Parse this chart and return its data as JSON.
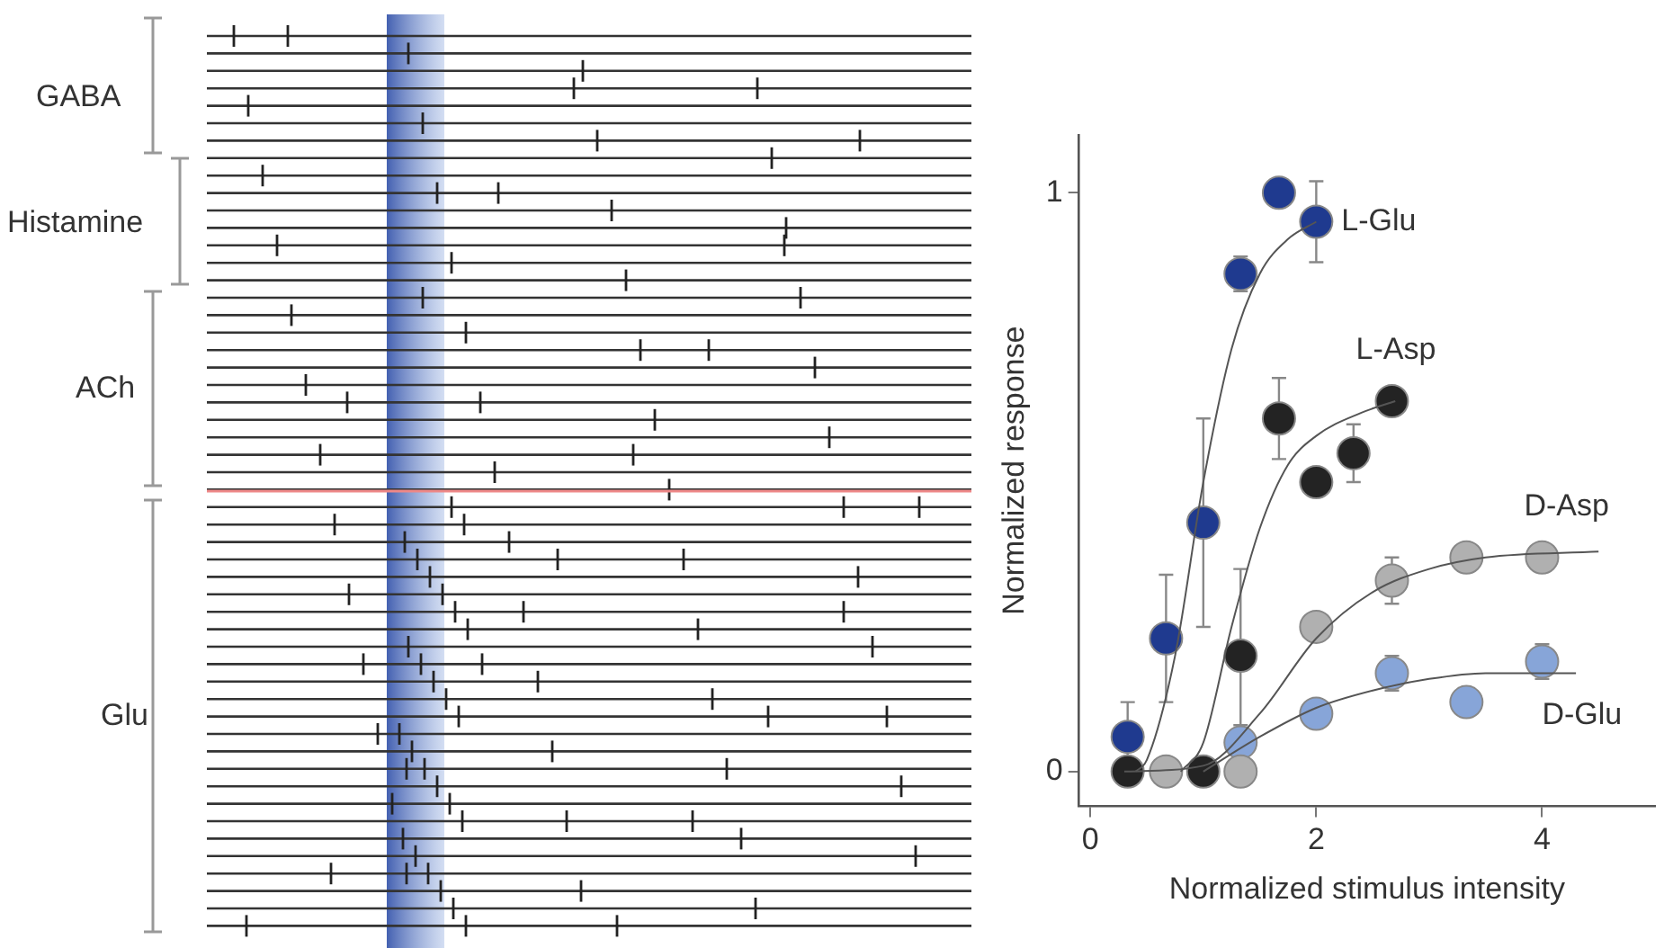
{
  "chart_data": [
    {
      "type": "other",
      "annotations": [
        "GABA",
        "Histamine",
        "ACh",
        "Glu"
      ]
    },
    {
      "type": "scatter",
      "xlabel": "Normalized stimulus intensity",
      "ylabel": "Normalized response",
      "xlim": [
        -0.1,
        5
      ],
      "ylim": [
        -0.06,
        1.1
      ],
      "xticks": [
        0,
        2,
        4
      ],
      "yticks": [
        0,
        1
      ],
      "grid": false,
      "legend": false,
      "series": [
        {
          "name": "L-Glu",
          "color": "#1f3a8f",
          "x": [
            0.33,
            0.67,
            1.0,
            1.33,
            1.67,
            2.0
          ],
          "values": [
            0.06,
            0.23,
            0.43,
            0.86,
            1.0,
            0.95
          ],
          "errors": [
            0.06,
            0.11,
            0.18,
            0.03,
            null,
            0.07
          ],
          "marker": "circle"
        },
        {
          "name": "L-Asp",
          "color": "#232323",
          "x": [
            0.33,
            1.0,
            1.33,
            1.67,
            2.0,
            2.33,
            2.67
          ],
          "values": [
            0,
            0,
            0.2,
            0.61,
            0.5,
            0.55,
            0.64
          ],
          "errors": [
            null,
            null,
            0.15,
            0.07,
            null,
            0.05,
            null
          ],
          "marker": "circle"
        },
        {
          "name": "D-Asp",
          "color": "#b0b0b0",
          "x": [
            0.67,
            1.33,
            2.0,
            2.67,
            3.33,
            4.0
          ],
          "values": [
            0,
            0,
            0.25,
            0.33,
            0.37,
            0.37
          ],
          "errors": [
            null,
            null,
            null,
            0.04,
            null,
            null
          ],
          "marker": "circle"
        },
        {
          "name": "D-Glu",
          "color": "#87a5d8",
          "x": [
            1.33,
            2.0,
            2.67,
            3.33,
            4.0
          ],
          "values": [
            0.05,
            0.1,
            0.17,
            0.12,
            0.19
          ],
          "errors": [
            0.03,
            null,
            0.03,
            null,
            0.03
          ],
          "marker": "circle"
        },
        {
          "type": "line",
          "color": "#555555",
          "x": [
            0.4,
            0.5,
            0.75,
            1.0,
            1.25,
            1.5,
            1.75,
            2.0
          ],
          "values": [
            0,
            0.02,
            0.2,
            0.5,
            0.73,
            0.86,
            0.92,
            0.95
          ],
          "marker": "none"
        },
        {
          "type": "line",
          "color": "#555555",
          "x": [
            0.8,
            1.0,
            1.25,
            1.5,
            1.75,
            2.0,
            2.4,
            2.7
          ],
          "values": [
            0,
            0.05,
            0.25,
            0.42,
            0.53,
            0.58,
            0.62,
            0.64
          ],
          "marker": "none"
        },
        {
          "type": "line",
          "color": "#555555",
          "x": [
            0.3,
            1.0,
            1.5,
            2.0,
            2.5,
            3.0,
            3.5,
            4.5
          ],
          "values": [
            0,
            0.01,
            0.1,
            0.23,
            0.31,
            0.35,
            0.37,
            0.38
          ],
          "marker": "none"
        },
        {
          "type": "line",
          "color": "#555555",
          "x": [
            1.0,
            1.5,
            2.0,
            2.5,
            3.0,
            3.5,
            4.3
          ],
          "values": [
            0,
            0.06,
            0.11,
            0.14,
            0.16,
            0.17,
            0.17
          ],
          "marker": "none"
        }
      ]
    }
  ]
}
